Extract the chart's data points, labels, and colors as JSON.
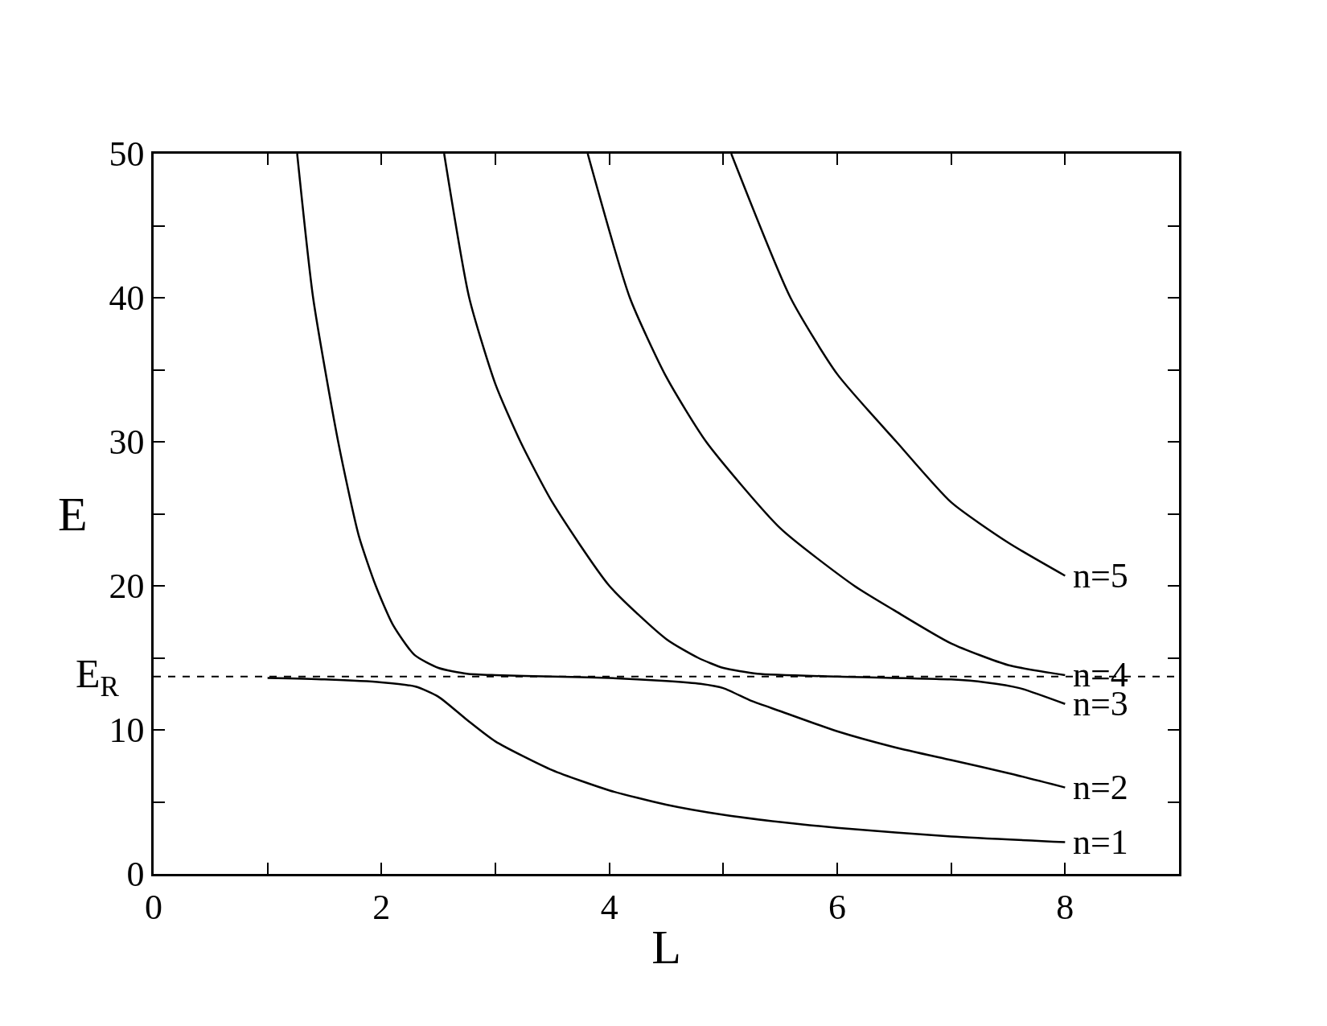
{
  "chart_data": {
    "type": "line",
    "xlabel": "L",
    "ylabel": "E",
    "xlim": [
      0,
      9
    ],
    "ylim": [
      0,
      50
    ],
    "xticks": [
      0,
      {
        "value": 1,
        "label": null
      },
      2,
      {
        "value": 3,
        "label": null
      },
      4,
      {
        "value": 5,
        "label": null
      },
      6,
      {
        "value": 7,
        "label": null
      },
      8,
      {
        "value": 9,
        "label": null
      }
    ],
    "yticks": [
      0,
      {
        "value": 5,
        "label": null
      },
      10,
      {
        "value": 15,
        "label": null
      },
      20,
      {
        "value": 25,
        "label": null
      },
      30,
      {
        "value": 35,
        "label": null
      },
      40,
      {
        "value": 45,
        "label": null
      },
      50
    ],
    "grid": false,
    "legend": "right",
    "marker": "none",
    "line_style": "solid",
    "series": [
      {
        "name": "n=1",
        "color": "#000000",
        "x": [
          1,
          1.5,
          2,
          2.3,
          2.5,
          2.75,
          3,
          3.5,
          4,
          4.5,
          5,
          5.5,
          6,
          7,
          8
        ],
        "values": [
          13.6,
          13.5,
          13.3,
          13.0,
          12.3,
          10.7,
          9.2,
          7.2,
          5.8,
          4.8,
          4.1,
          3.6,
          3.2,
          2.6,
          2.2
        ]
      },
      {
        "name": "n=2",
        "color": "#000000",
        "x": [
          1.26,
          1.4,
          1.62,
          1.8,
          1.95,
          2.1,
          2.29,
          2.5,
          2.75,
          3,
          3.5,
          4,
          4.5,
          4.8,
          5,
          5.25,
          5.5,
          6,
          6.5,
          7,
          7.5,
          8
        ],
        "values": [
          50,
          40,
          30,
          23.5,
          20,
          17.3,
          15.2,
          14.3,
          13.9,
          13.8,
          13.7,
          13.6,
          13.4,
          13.2,
          12.9,
          12.0,
          11.3,
          9.9,
          8.8,
          7.9,
          7.0,
          6.0
        ]
      },
      {
        "name": "n=3",
        "color": "#000000",
        "x": [
          2.55,
          2.77,
          3.0,
          3.22,
          3.5,
          4,
          4.5,
          4.78,
          5,
          5.3,
          6,
          7,
          7.3,
          7.6,
          8
        ],
        "values": [
          50,
          40,
          34,
          30,
          25.8,
          20,
          16.3,
          15,
          14.3,
          13.9,
          13.7,
          13.5,
          13.3,
          12.9,
          11.8
        ]
      },
      {
        "name": "n=4",
        "color": "#000000",
        "x": [
          3.81,
          4.18,
          4.5,
          4.85,
          5.5,
          6.15,
          6.5,
          7,
          7.5,
          8
        ],
        "values": [
          50,
          40,
          34.5,
          30,
          24,
          20,
          18.3,
          16,
          14.5,
          13.8
        ]
      },
      {
        "name": "n=5",
        "color": "#000000",
        "x": [
          5.07,
          5.59,
          6,
          6.52,
          7,
          7.5,
          8
        ],
        "values": [
          50,
          40,
          34.7,
          30,
          25.8,
          23,
          20.7
        ]
      }
    ],
    "ref_lines": [
      {
        "axis": "y",
        "value": 13.7,
        "label": "E$_{R}$",
        "color": "#000000",
        "line_style": "dashed"
      }
    ]
  }
}
